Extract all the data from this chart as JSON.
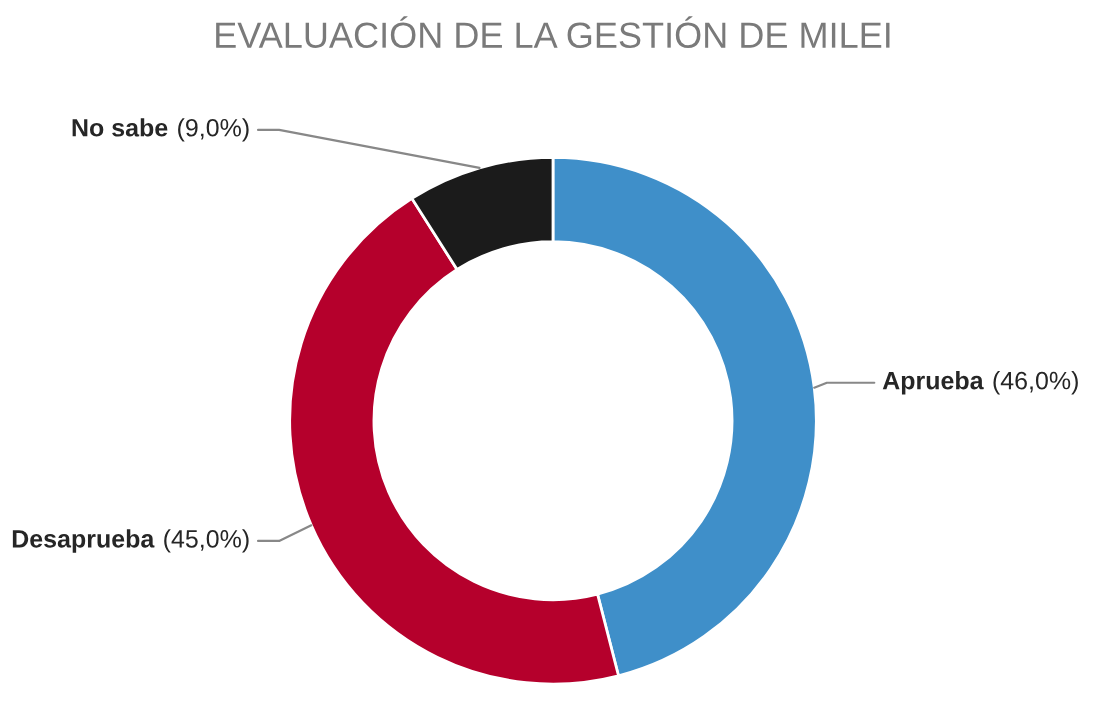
{
  "chart_data": {
    "type": "donut",
    "title": "EVALUACIÓN DE LA GESTIÓN DE MILEI",
    "categories": [
      "Aprueba",
      "Desaprueba",
      "No sabe"
    ],
    "values": [
      46.0,
      45.0,
      9.0
    ],
    "colors": [
      "#3f8fc9",
      "#b5002c",
      "#1b1b1b"
    ],
    "value_labels": [
      "(46,0%)",
      "(45,0%)",
      "(9,0%)"
    ],
    "legend": false
  }
}
